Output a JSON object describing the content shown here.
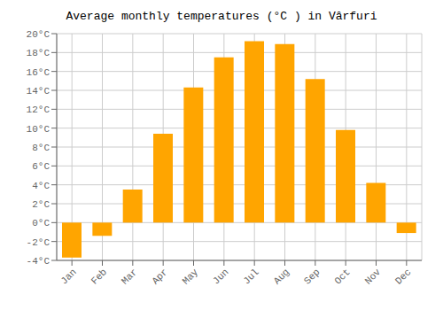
{
  "chart_data": {
    "type": "bar",
    "title": "Average monthly temperatures (°C ) in Vârfuri",
    "categories": [
      "Jan",
      "Feb",
      "Mar",
      "Apr",
      "May",
      "Jun",
      "Jul",
      "Aug",
      "Sep",
      "Oct",
      "Nov",
      "Dec"
    ],
    "values": [
      -3.7,
      -1.4,
      3.5,
      9.4,
      14.3,
      17.5,
      19.2,
      18.9,
      15.2,
      9.8,
      4.2,
      -1.1
    ],
    "color": "#FFA500",
    "ylim": [
      -4,
      20
    ],
    "yticks": [
      {
        "value": -4,
        "label": "-4°C"
      },
      {
        "value": -2,
        "label": "-2°C"
      },
      {
        "value": 0,
        "label": "0°C"
      },
      {
        "value": 2,
        "label": "2°C"
      },
      {
        "value": 4,
        "label": "4°C"
      },
      {
        "value": 6,
        "label": "6°C"
      },
      {
        "value": 8,
        "label": "8°C"
      },
      {
        "value": 10,
        "label": "10°C"
      },
      {
        "value": 12,
        "label": "12°C"
      },
      {
        "value": 14,
        "label": "14°C"
      },
      {
        "value": 16,
        "label": "16°C"
      },
      {
        "value": 18,
        "label": "18°C"
      },
      {
        "value": 20,
        "label": "20°C"
      }
    ],
    "grid": true
  }
}
